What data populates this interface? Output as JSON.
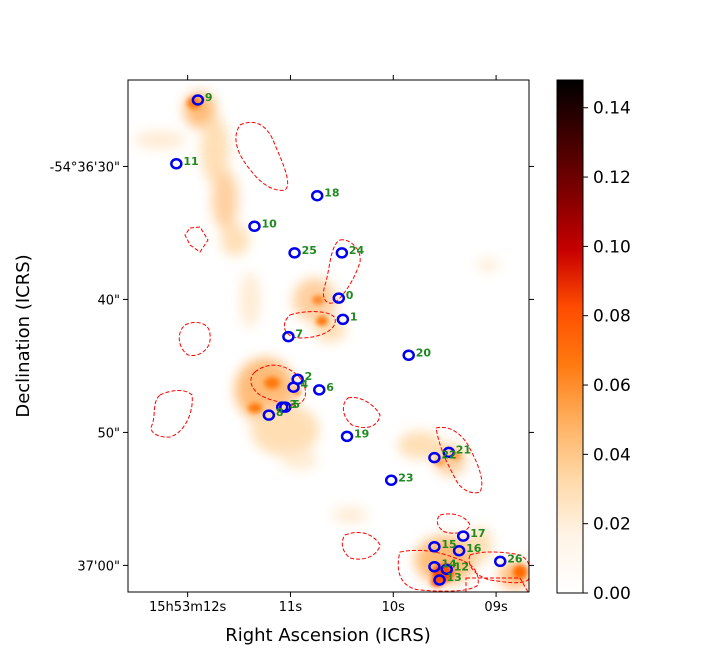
{
  "chart_data": {
    "type": "heatmap",
    "title": "",
    "xlabel": "Right Ascension (ICRS)",
    "ylabel": "Declination (ICRS)",
    "x_tick_labels": [
      "15h53m12s",
      "11s",
      "10s",
      "09s"
    ],
    "x_tick_values": [
      12,
      11,
      10,
      9
    ],
    "xlim": [
      12.58,
      8.68
    ],
    "y_tick_labels": [
      "-54°36'30\"",
      "40\"",
      "50\"",
      "37'00\""
    ],
    "y_tick_values": [
      30,
      40,
      50,
      60
    ],
    "ylim": [
      62,
      23.5
    ],
    "colorbar": {
      "ticks": [
        0.0,
        0.02,
        0.04,
        0.06,
        0.08,
        0.1,
        0.12,
        0.14
      ],
      "tick_labels": [
        "0.00",
        "0.02",
        "0.04",
        "0.06",
        "0.08",
        "0.10",
        "0.12",
        "0.14"
      ],
      "range": [
        0,
        0.148
      ],
      "colormap": [
        "#ffffff",
        "#fff4e6",
        "#ffd9a8",
        "#ffb060",
        "#ff7a10",
        "#ff4d00",
        "#c80000",
        "#800000",
        "#400000",
        "#000000"
      ]
    },
    "colors": {
      "source_ring": "#0000ee",
      "label": "#1f8a1f",
      "contour": "#ff0000"
    },
    "sources": [
      {
        "id": "0",
        "ra": 10.53,
        "dec": 39.9
      },
      {
        "id": "1",
        "ra": 10.49,
        "dec": 41.5
      },
      {
        "id": "2",
        "ra": 10.93,
        "dec": 46.0
      },
      {
        "id": "3",
        "ra": 11.08,
        "dec": 48.1
      },
      {
        "id": "4",
        "ra": 10.97,
        "dec": 46.6
      },
      {
        "id": "5",
        "ra": 11.05,
        "dec": 48.1
      },
      {
        "id": "6",
        "ra": 10.72,
        "dec": 46.8
      },
      {
        "id": "7",
        "ra": 11.02,
        "dec": 42.8
      },
      {
        "id": "8",
        "ra": 11.21,
        "dec": 48.7
      },
      {
        "id": "9",
        "ra": 11.9,
        "dec": 25.0
      },
      {
        "id": "10",
        "ra": 11.35,
        "dec": 34.5
      },
      {
        "id": "11",
        "ra": 12.11,
        "dec": 29.8
      },
      {
        "id": "12",
        "ra": 9.48,
        "dec": 60.3
      },
      {
        "id": "13",
        "ra": 9.55,
        "dec": 61.1
      },
      {
        "id": "14",
        "ra": 9.6,
        "dec": 60.1
      },
      {
        "id": "15",
        "ra": 9.6,
        "dec": 58.6
      },
      {
        "id": "16",
        "ra": 9.36,
        "dec": 58.9
      },
      {
        "id": "17",
        "ra": 9.32,
        "dec": 57.8
      },
      {
        "id": "18",
        "ra": 10.74,
        "dec": 32.2
      },
      {
        "id": "19",
        "ra": 10.45,
        "dec": 50.3
      },
      {
        "id": "20",
        "ra": 9.85,
        "dec": 44.2
      },
      {
        "id": "21",
        "ra": 9.46,
        "dec": 51.5
      },
      {
        "id": "22",
        "ra": 9.6,
        "dec": 51.9
      },
      {
        "id": "23",
        "ra": 10.02,
        "dec": 53.6
      },
      {
        "id": "24",
        "ra": 10.5,
        "dec": 36.5
      },
      {
        "id": "25",
        "ra": 10.96,
        "dec": 36.5
      },
      {
        "id": "26",
        "ra": 8.96,
        "dec": 59.7
      }
    ]
  }
}
